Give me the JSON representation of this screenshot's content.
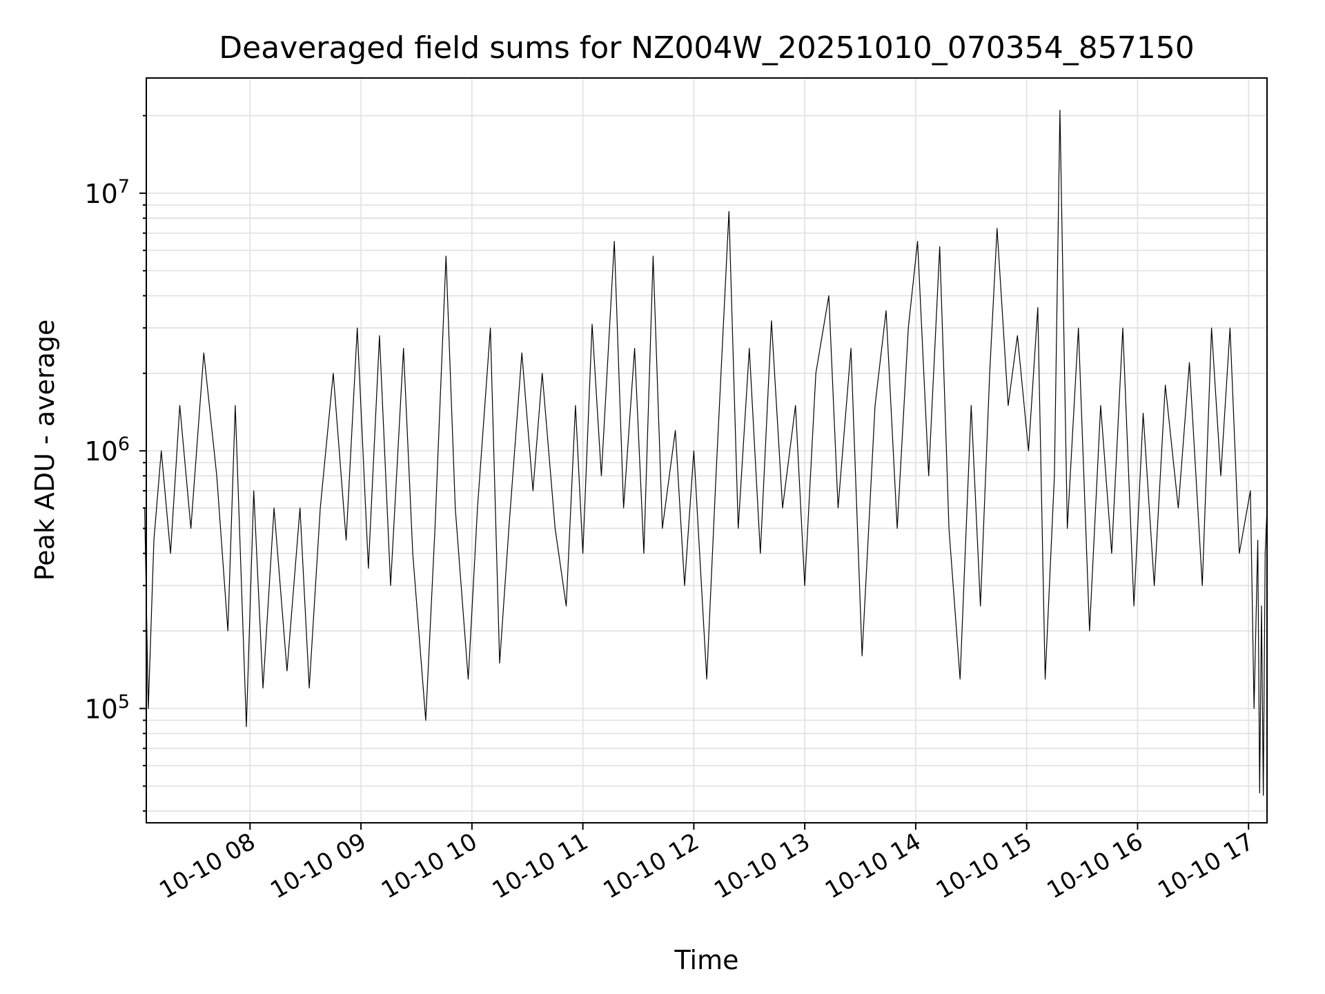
{
  "chart_data": {
    "type": "line",
    "title": "Deaveraged field sums for NZ004W_20251010_070354_857150",
    "xlabel": "Time",
    "ylabel": "Peak ADU - average",
    "yscale": "log",
    "grid": true,
    "xlim": [
      "2025-10-10T07:03:54",
      "2025-10-10T17:10:00"
    ],
    "ylim": [
      36000,
      28000000
    ],
    "x_tick_labels": [
      "10-10 08",
      "10-10 09",
      "10-10 10",
      "10-10 11",
      "10-10 12",
      "10-10 13",
      "10-10 14",
      "10-10 15",
      "10-10 16",
      "10-10 17"
    ],
    "x_ticks": [
      "2025-10-10T08:00",
      "2025-10-10T09:00",
      "2025-10-10T10:00",
      "2025-10-10T11:00",
      "2025-10-10T12:00",
      "2025-10-10T13:00",
      "2025-10-10T14:00",
      "2025-10-10T15:00",
      "2025-10-10T16:00",
      "2025-10-10T17:00"
    ],
    "y_ticks": [
      100000,
      1000000,
      10000000
    ],
    "y_tick_labels": [
      {
        "base": "10",
        "exp": "5"
      },
      {
        "base": "10",
        "exp": "6"
      },
      {
        "base": "10",
        "exp": "7"
      }
    ],
    "series": [
      {
        "color": "#000000",
        "points": [
          [
            "2025-10-10T07:03",
            600000
          ],
          [
            "2025-10-10T07:05",
            100000
          ],
          [
            "2025-10-10T07:08",
            450000
          ],
          [
            "2025-10-10T07:12",
            1000000
          ],
          [
            "2025-10-10T07:17",
            400000
          ],
          [
            "2025-10-10T07:22",
            1500000
          ],
          [
            "2025-10-10T07:28",
            500000
          ],
          [
            "2025-10-10T07:35",
            2400000
          ],
          [
            "2025-10-10T07:42",
            800000
          ],
          [
            "2025-10-10T07:48",
            200000
          ],
          [
            "2025-10-10T07:52",
            1500000
          ],
          [
            "2025-10-10T07:58",
            85000
          ],
          [
            "2025-10-10T08:02",
            700000
          ],
          [
            "2025-10-10T08:07",
            120000
          ],
          [
            "2025-10-10T08:13",
            600000
          ],
          [
            "2025-10-10T08:20",
            140000
          ],
          [
            "2025-10-10T08:27",
            600000
          ],
          [
            "2025-10-10T08:32",
            120000
          ],
          [
            "2025-10-10T08:38",
            600000
          ],
          [
            "2025-10-10T08:45",
            2000000
          ],
          [
            "2025-10-10T08:52",
            450000
          ],
          [
            "2025-10-10T08:58",
            3000000
          ],
          [
            "2025-10-10T09:04",
            350000
          ],
          [
            "2025-10-10T09:10",
            2800000
          ],
          [
            "2025-10-10T09:16",
            300000
          ],
          [
            "2025-10-10T09:23",
            2500000
          ],
          [
            "2025-10-10T09:28",
            400000
          ],
          [
            "2025-10-10T09:35",
            90000
          ],
          [
            "2025-10-10T09:40",
            500000
          ],
          [
            "2025-10-10T09:46",
            5700000
          ],
          [
            "2025-10-10T09:51",
            600000
          ],
          [
            "2025-10-10T09:58",
            130000
          ],
          [
            "2025-10-10T10:03",
            600000
          ],
          [
            "2025-10-10T10:10",
            3000000
          ],
          [
            "2025-10-10T10:15",
            150000
          ],
          [
            "2025-10-10T10:20",
            500000
          ],
          [
            "2025-10-10T10:27",
            2400000
          ],
          [
            "2025-10-10T10:33",
            700000
          ],
          [
            "2025-10-10T10:38",
            2000000
          ],
          [
            "2025-10-10T10:45",
            500000
          ],
          [
            "2025-10-10T10:51",
            250000
          ],
          [
            "2025-10-10T10:56",
            1500000
          ],
          [
            "2025-10-10T11:00",
            400000
          ],
          [
            "2025-10-10T11:05",
            3100000
          ],
          [
            "2025-10-10T11:10",
            800000
          ],
          [
            "2025-10-10T11:17",
            6500000
          ],
          [
            "2025-10-10T11:22",
            600000
          ],
          [
            "2025-10-10T11:28",
            2500000
          ],
          [
            "2025-10-10T11:33",
            400000
          ],
          [
            "2025-10-10T11:38",
            5700000
          ],
          [
            "2025-10-10T11:43",
            500000
          ],
          [
            "2025-10-10T11:50",
            1200000
          ],
          [
            "2025-10-10T11:55",
            300000
          ],
          [
            "2025-10-10T12:00",
            1000000
          ],
          [
            "2025-10-10T12:07",
            130000
          ],
          [
            "2025-10-10T12:12",
            800000
          ],
          [
            "2025-10-10T12:19",
            8500000
          ],
          [
            "2025-10-10T12:24",
            500000
          ],
          [
            "2025-10-10T12:30",
            2500000
          ],
          [
            "2025-10-10T12:36",
            400000
          ],
          [
            "2025-10-10T12:42",
            3200000
          ],
          [
            "2025-10-10T12:48",
            600000
          ],
          [
            "2025-10-10T12:55",
            1500000
          ],
          [
            "2025-10-10T13:00",
            300000
          ],
          [
            "2025-10-10T13:06",
            2000000
          ],
          [
            "2025-10-10T13:13",
            4000000
          ],
          [
            "2025-10-10T13:18",
            600000
          ],
          [
            "2025-10-10T13:25",
            2500000
          ],
          [
            "2025-10-10T13:31",
            160000
          ],
          [
            "2025-10-10T13:38",
            1500000
          ],
          [
            "2025-10-10T13:44",
            3500000
          ],
          [
            "2025-10-10T13:50",
            500000
          ],
          [
            "2025-10-10T13:56",
            3000000
          ],
          [
            "2025-10-10T14:01",
            6500000
          ],
          [
            "2025-10-10T14:07",
            800000
          ],
          [
            "2025-10-10T14:13",
            6200000
          ],
          [
            "2025-10-10T14:18",
            500000
          ],
          [
            "2025-10-10T14:24",
            130000
          ],
          [
            "2025-10-10T14:30",
            1500000
          ],
          [
            "2025-10-10T14:35",
            250000
          ],
          [
            "2025-10-10T14:40",
            2000000
          ],
          [
            "2025-10-10T14:44",
            7300000
          ],
          [
            "2025-10-10T14:50",
            1500000
          ],
          [
            "2025-10-10T14:55",
            2800000
          ],
          [
            "2025-10-10T15:01",
            1000000
          ],
          [
            "2025-10-10T15:06",
            3600000
          ],
          [
            "2025-10-10T15:10",
            130000
          ],
          [
            "2025-10-10T15:15",
            800000
          ],
          [
            "2025-10-10T15:18",
            21000000
          ],
          [
            "2025-10-10T15:22",
            500000
          ],
          [
            "2025-10-10T15:28",
            3000000
          ],
          [
            "2025-10-10T15:34",
            200000
          ],
          [
            "2025-10-10T15:40",
            1500000
          ],
          [
            "2025-10-10T15:46",
            400000
          ],
          [
            "2025-10-10T15:52",
            3000000
          ],
          [
            "2025-10-10T15:58",
            250000
          ],
          [
            "2025-10-10T16:03",
            1400000
          ],
          [
            "2025-10-10T16:09",
            300000
          ],
          [
            "2025-10-10T16:15",
            1800000
          ],
          [
            "2025-10-10T16:22",
            600000
          ],
          [
            "2025-10-10T16:28",
            2200000
          ],
          [
            "2025-10-10T16:35",
            300000
          ],
          [
            "2025-10-10T16:40",
            3000000
          ],
          [
            "2025-10-10T16:45",
            800000
          ],
          [
            "2025-10-10T16:50",
            3000000
          ],
          [
            "2025-10-10T16:55",
            400000
          ],
          [
            "2025-10-10T17:01",
            700000
          ],
          [
            "2025-10-10T17:03",
            100000
          ],
          [
            "2025-10-10T17:05",
            450000
          ],
          [
            "2025-10-10T17:06",
            47000
          ],
          [
            "2025-10-10T17:07",
            250000
          ],
          [
            "2025-10-10T17:08",
            46000
          ],
          [
            "2025-10-10T17:09",
            400000
          ],
          [
            "2025-10-10T17:10",
            600000
          ]
        ]
      }
    ]
  }
}
